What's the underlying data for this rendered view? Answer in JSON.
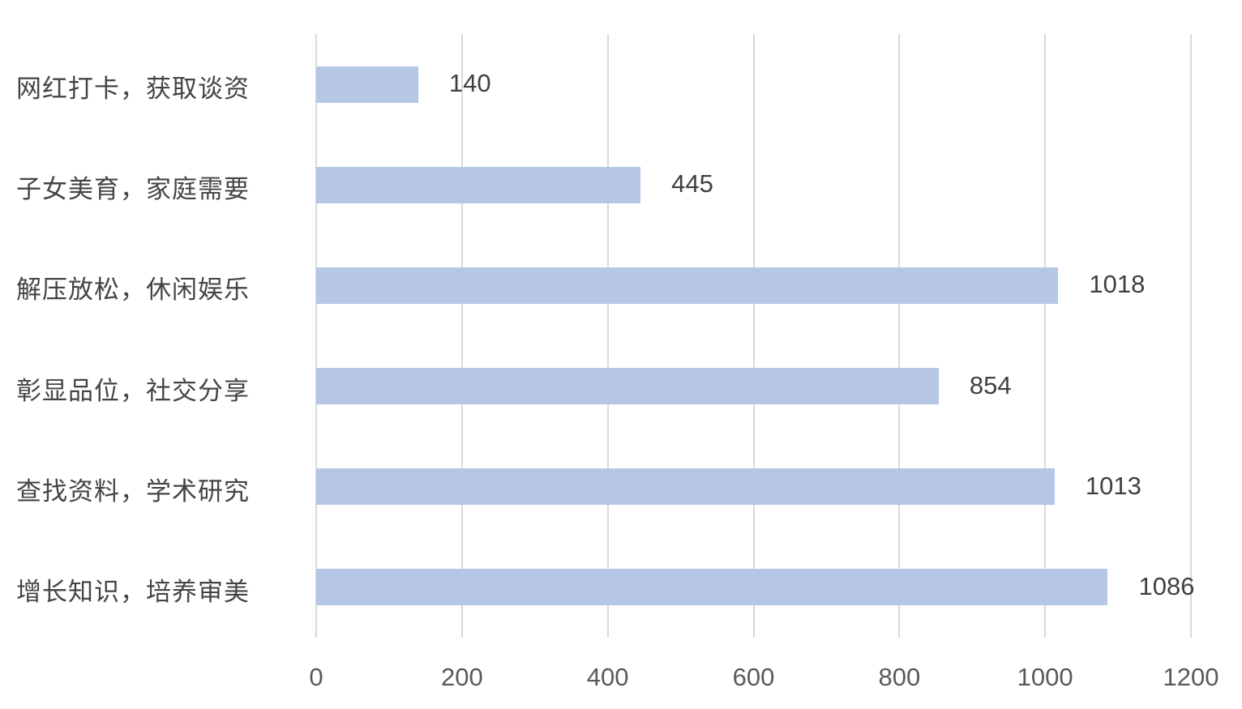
{
  "chart_data": {
    "type": "bar",
    "orientation": "horizontal",
    "title": "",
    "xlabel": "",
    "ylabel": "",
    "categories": [
      "网红打卡，获取谈资",
      "子女美育，家庭需要",
      "解压放松，休闲娱乐",
      "彰显品位，社交分享",
      "查找资料，学术研究",
      "增长知识，培养审美"
    ],
    "values": [
      140,
      445,
      1018,
      854,
      1013,
      1086
    ],
    "data_labels": [
      "140",
      "445",
      "1018",
      "854",
      "1013",
      "1086"
    ],
    "x_ticks": [
      0,
      200,
      400,
      600,
      800,
      1000,
      1200
    ],
    "x_tick_labels": [
      "0",
      "200",
      "400",
      "600",
      "800",
      "1000",
      "1200"
    ],
    "xlim": [
      0,
      1200
    ],
    "grid": "vertical-on",
    "legend": "none",
    "colors": {
      "bar_fill": "#b5c7e4",
      "gridline": "#d9d9d9",
      "category_text": "#444444",
      "value_text": "#404040",
      "axis_text": "#595959",
      "background": "#ffffff"
    }
  }
}
